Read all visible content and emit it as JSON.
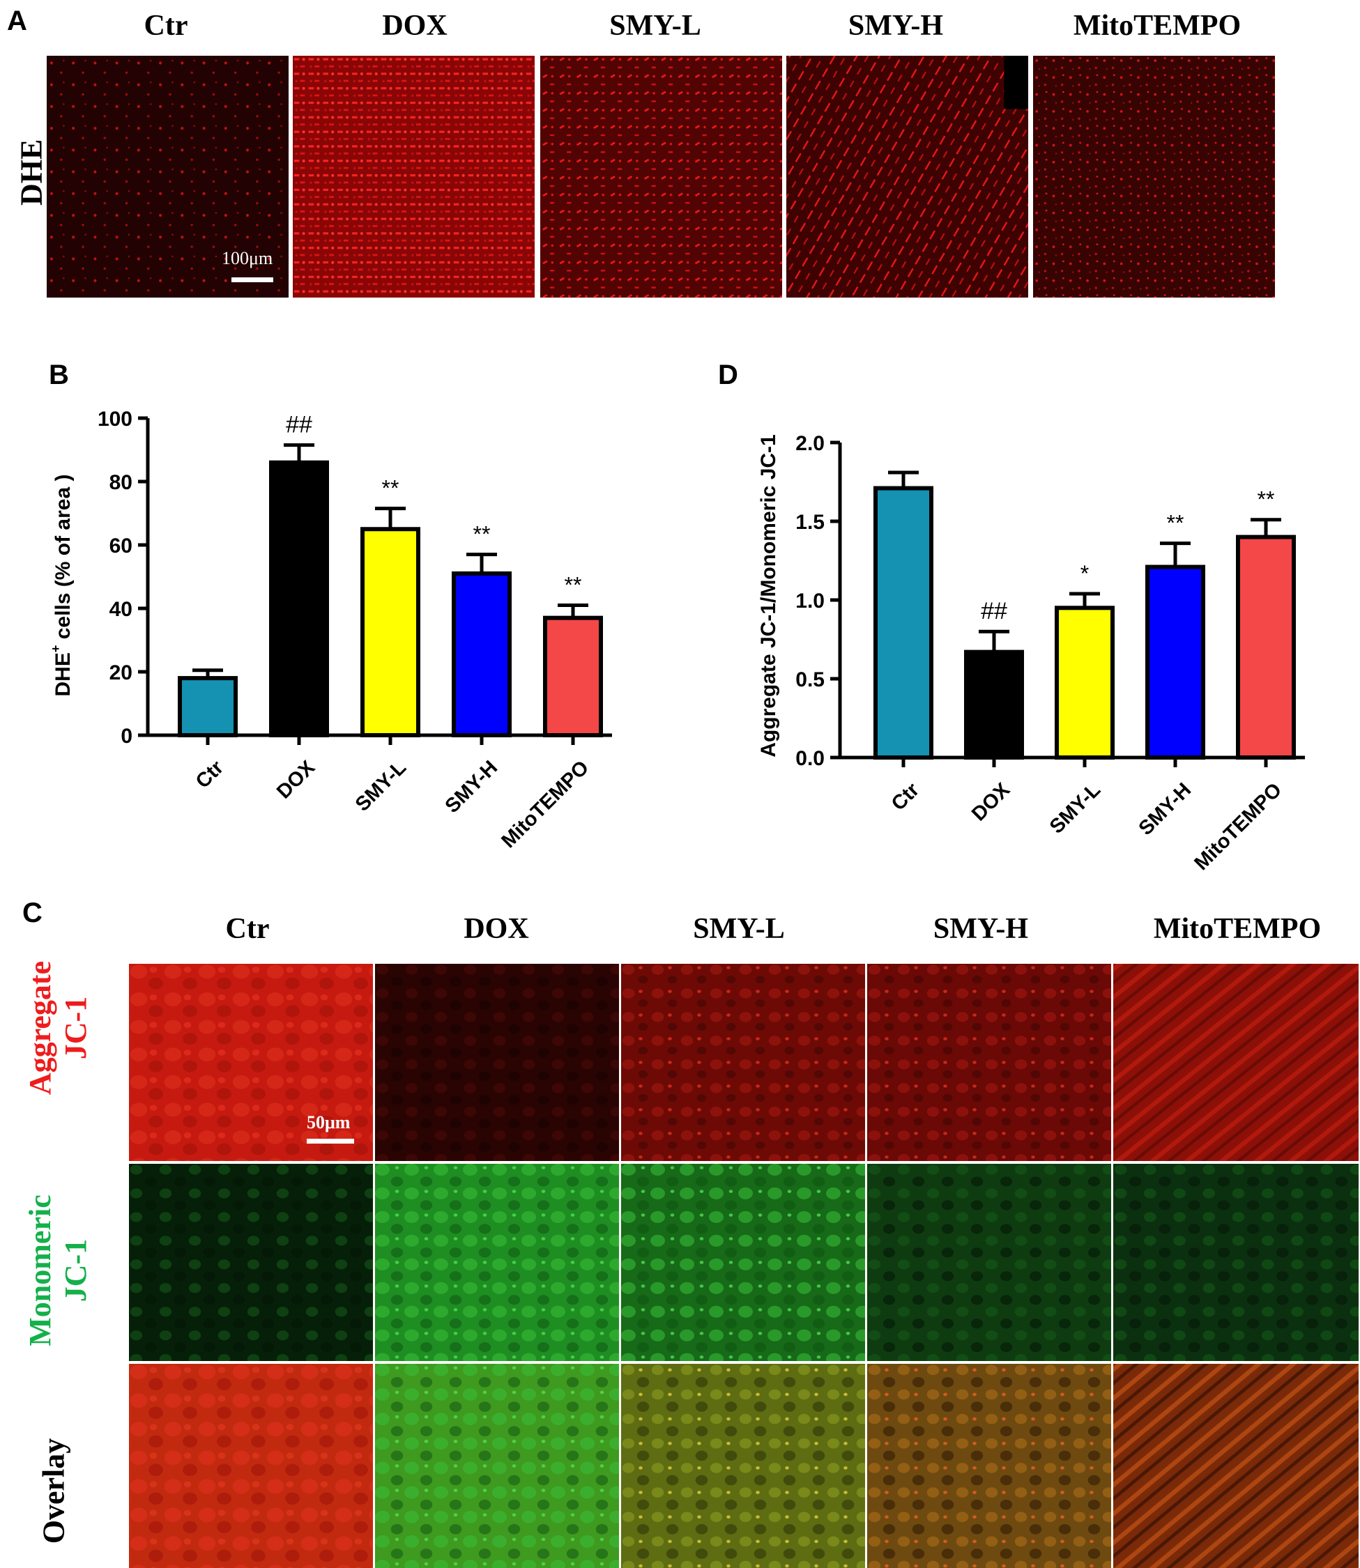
{
  "groups": [
    "Ctr",
    "DOX",
    "SMY-L",
    "SMY-H",
    "MitoTEMPO"
  ],
  "colors": {
    "Ctr": "#1592b2",
    "DOX": "#000000",
    "SMY-L": "#ffff00",
    "SMY-H": "#0000ff",
    "MitoTEMPO": "#f44747",
    "aggregate_label": "#ee1c1c",
    "monomeric_label": "#14b04a"
  },
  "panel_a": {
    "letter": "A",
    "row_label": "DHE",
    "scale_bar": "100μm",
    "column_labels": [
      "Ctr",
      "DOX",
      "SMY-L",
      "SMY-H",
      "MitoTEMPO"
    ]
  },
  "panel_c": {
    "letter": "C",
    "column_labels": [
      "Ctr",
      "DOX",
      "SMY-L",
      "SMY-H",
      "MitoTEMPO"
    ],
    "row_labels": {
      "aggregate": [
        "Aggregate",
        "JC-1"
      ],
      "monomeric": [
        "Monomeric",
        "JC-1"
      ],
      "overlay": [
        "Overlay"
      ]
    },
    "scale_bar": "50μm"
  },
  "chart_data": [
    {
      "panel": "B",
      "type": "bar",
      "categories": [
        "Ctr",
        "DOX",
        "SMY-L",
        "SMY-H",
        "MitoTEMPO"
      ],
      "values": [
        18,
        86,
        65,
        51,
        37
      ],
      "errors": [
        2.5,
        5.5,
        6.5,
        6,
        4
      ],
      "annotations": [
        "",
        "##",
        "**",
        "**",
        "**"
      ],
      "ylabel_main": "DHE",
      "ylabel_sup": "+",
      "ylabel_rest": " cells (% of area )",
      "yticks": [
        "0",
        "20",
        "40",
        "60",
        "80",
        "100"
      ],
      "ytick_values": [
        0,
        20,
        40,
        60,
        80,
        100
      ],
      "ylim": [
        0,
        100
      ]
    },
    {
      "panel": "D",
      "type": "bar",
      "categories": [
        "Ctr",
        "DOX",
        "SMY-L",
        "SMY-H",
        "MitoTEMPO"
      ],
      "values": [
        1.71,
        0.67,
        0.95,
        1.21,
        1.4
      ],
      "errors": [
        0.1,
        0.13,
        0.09,
        0.15,
        0.11
      ],
      "annotations": [
        "",
        "##",
        "*",
        "**",
        "**"
      ],
      "ylabel": "Aggregate JC-1/Monomeric JC-1",
      "yticks": [
        "0.0",
        "0.5",
        "1.0",
        "1.5",
        "2.0"
      ],
      "ytick_values": [
        0,
        0.5,
        1.0,
        1.5,
        2.0
      ],
      "ylim": [
        0,
        2.0
      ]
    }
  ]
}
